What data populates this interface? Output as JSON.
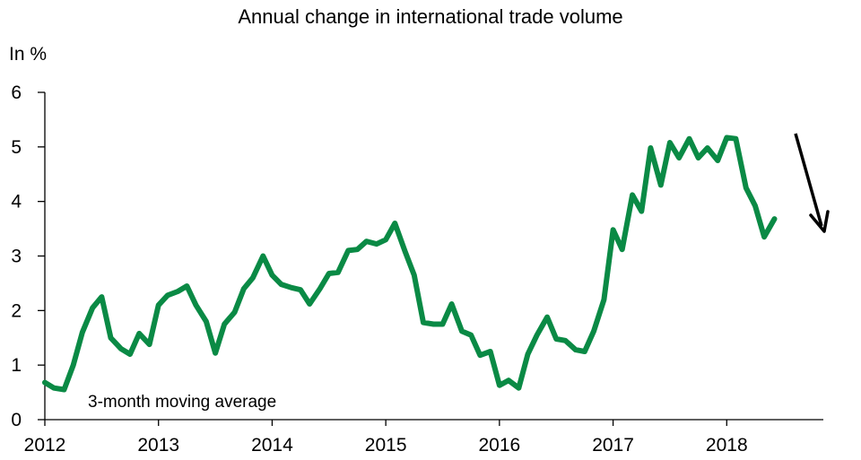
{
  "chart_data": {
    "type": "line",
    "title": "Annual change in international trade volume",
    "ylabel": "In %",
    "xlabel": "",
    "annotation": "3-month moving average",
    "ylim": [
      0,
      6
    ],
    "xlim": [
      2012,
      2018.85
    ],
    "yticks": [
      0,
      1,
      2,
      3,
      4,
      5,
      6
    ],
    "xticks": [
      "2012",
      "2013",
      "2014",
      "2015",
      "2016",
      "2017",
      "2018"
    ],
    "grid": false,
    "legend": "none",
    "trend_arrow": "down",
    "colors": {
      "line": "#0a8a45",
      "axis": "#000000",
      "arrow": "#000000"
    },
    "series": [
      {
        "x": [
          2012.0,
          2012.08,
          2012.17,
          2012.25,
          2012.33,
          2012.42,
          2012.5,
          2012.58,
          2012.67,
          2012.75,
          2012.83,
          2012.92,
          2013.0,
          2013.08,
          2013.17,
          2013.25,
          2013.33,
          2013.42,
          2013.5,
          2013.58,
          2013.67,
          2013.75,
          2013.83,
          2013.92,
          2014.0,
          2014.08,
          2014.17,
          2014.25,
          2014.33,
          2014.42,
          2014.5,
          2014.58,
          2014.67,
          2014.75,
          2014.83,
          2014.92,
          2015.0,
          2015.08,
          2015.17,
          2015.25,
          2015.33,
          2015.42,
          2015.5,
          2015.58,
          2015.67,
          2015.75,
          2015.83,
          2015.92,
          2016.0,
          2016.08,
          2016.17,
          2016.25,
          2016.33,
          2016.42,
          2016.5,
          2016.58,
          2016.67,
          2016.75,
          2016.83,
          2016.92,
          2017.0,
          2017.08,
          2017.17,
          2017.25,
          2017.33,
          2017.42,
          2017.5,
          2017.58,
          2017.67,
          2017.75,
          2017.83,
          2017.92,
          2018.0,
          2018.08,
          2018.17,
          2018.25,
          2018.33,
          2018.42
        ],
        "values": [
          0.68,
          0.58,
          0.55,
          1.0,
          1.6,
          2.05,
          2.25,
          1.5,
          1.3,
          1.2,
          1.58,
          1.38,
          2.1,
          2.28,
          2.35,
          2.45,
          2.1,
          1.8,
          1.22,
          1.75,
          1.97,
          2.4,
          2.6,
          3.0,
          2.65,
          2.48,
          2.42,
          2.38,
          2.12,
          2.4,
          2.68,
          2.7,
          3.1,
          3.12,
          3.27,
          3.22,
          3.3,
          3.6,
          3.08,
          2.65,
          1.78,
          1.75,
          1.75,
          2.12,
          1.62,
          1.55,
          1.18,
          1.25,
          0.63,
          0.72,
          0.58,
          1.2,
          1.55,
          1.88,
          1.48,
          1.45,
          1.28,
          1.25,
          1.62,
          2.2,
          3.48,
          3.12,
          4.12,
          3.82,
          4.98,
          4.3,
          5.08,
          4.8,
          5.15,
          4.8,
          4.98,
          4.75,
          5.17,
          5.15,
          4.25,
          3.92,
          3.35,
          3.68
        ]
      }
    ]
  }
}
